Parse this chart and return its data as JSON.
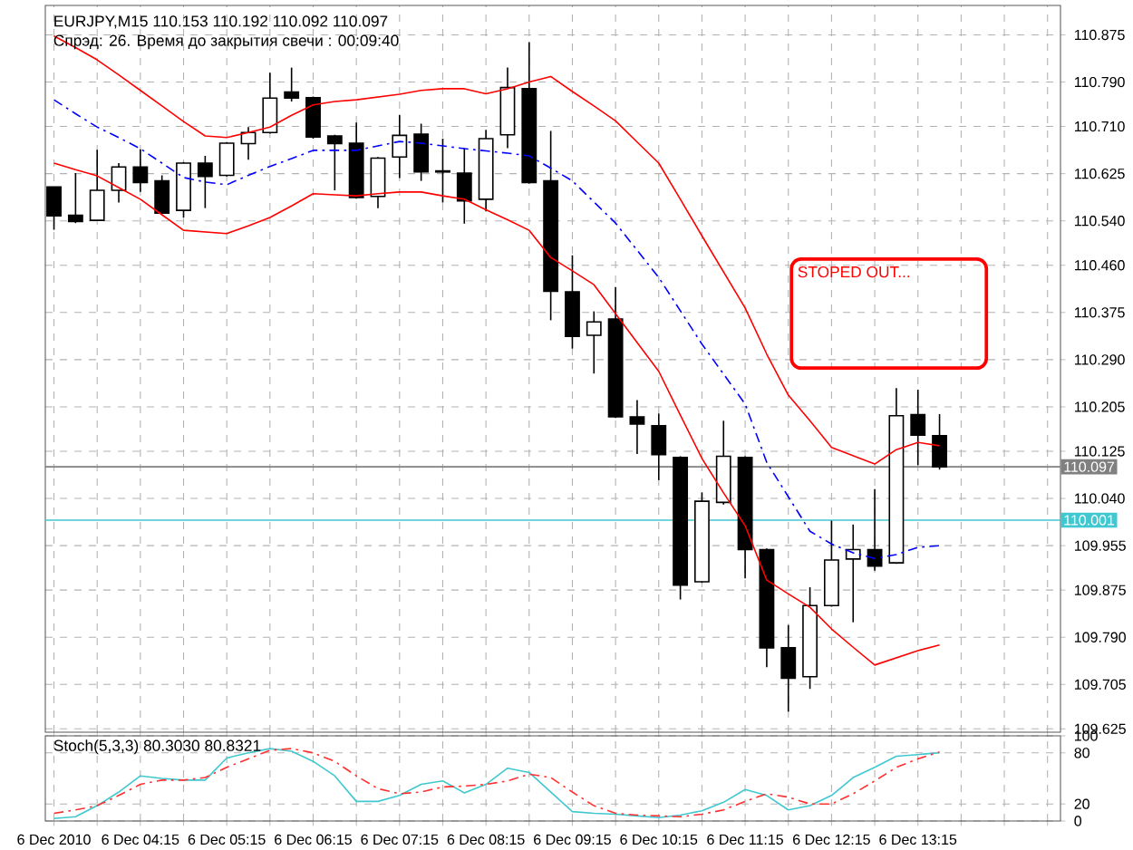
{
  "chart_data": [
    {
      "type": "candlestick",
      "title": "EURJPY,M15  110.153 110.192 110.092 110.097",
      "subtitle": "Спрэд: 26. Время до закрытия свечи : 00:09:40",
      "categories": [
        null,
        null,
        null,
        null,
        null,
        null,
        null,
        null,
        null,
        null,
        null,
        null,
        null,
        null,
        null,
        null,
        null,
        null,
        null,
        null,
        null,
        null,
        null,
        null,
        null,
        null,
        null,
        null,
        null,
        null,
        null,
        null,
        null,
        null,
        null,
        null,
        null,
        null,
        null,
        null,
        null,
        null
      ],
      "ohlc": [
        [
          110.601,
          110.601,
          110.524,
          110.549
        ],
        [
          110.55,
          110.626,
          110.536,
          110.539
        ],
        [
          110.541,
          110.668,
          110.54,
          110.595
        ],
        [
          110.595,
          110.644,
          110.573,
          110.637
        ],
        [
          110.637,
          110.669,
          110.592,
          110.609
        ],
        [
          110.612,
          110.622,
          110.552,
          110.554
        ],
        [
          110.559,
          110.646,
          110.546,
          110.644
        ],
        [
          110.644,
          110.657,
          110.563,
          110.62
        ],
        [
          110.622,
          110.682,
          110.62,
          110.68
        ],
        [
          110.679,
          110.709,
          110.65,
          110.699
        ],
        [
          110.699,
          110.807,
          110.697,
          110.761
        ],
        [
          110.772,
          110.816,
          110.755,
          110.761
        ],
        [
          110.762,
          110.764,
          110.688,
          110.691
        ],
        [
          110.693,
          110.695,
          110.595,
          110.679
        ],
        [
          110.68,
          110.717,
          110.58,
          110.582
        ],
        [
          110.584,
          110.655,
          110.563,
          110.653
        ],
        [
          110.655,
          110.731,
          110.617,
          110.694
        ],
        [
          110.696,
          110.715,
          110.612,
          110.628
        ],
        [
          110.63,
          110.688,
          110.573,
          110.628
        ],
        [
          110.626,
          110.671,
          110.535,
          110.576
        ],
        [
          110.579,
          110.704,
          110.557,
          110.688
        ],
        [
          110.695,
          110.816,
          110.671,
          110.78
        ],
        [
          110.778,
          110.862,
          110.607,
          110.609
        ],
        [
          110.612,
          110.702,
          110.361,
          110.413
        ],
        [
          110.412,
          110.478,
          110.31,
          110.332
        ],
        [
          110.334,
          110.377,
          110.265,
          110.358
        ],
        [
          110.363,
          110.421,
          110.185,
          110.187
        ],
        [
          110.187,
          110.217,
          110.12,
          110.174
        ],
        [
          110.171,
          110.193,
          110.073,
          110.119
        ],
        [
          110.114,
          110.116,
          109.858,
          109.884
        ],
        [
          109.89,
          110.051,
          109.888,
          110.035
        ],
        [
          110.033,
          110.18,
          110.029,
          110.116
        ],
        [
          110.114,
          110.116,
          109.896,
          109.948
        ],
        [
          109.948,
          109.95,
          109.736,
          109.771
        ],
        [
          109.771,
          109.812,
          109.656,
          109.716
        ],
        [
          109.719,
          109.88,
          109.697,
          109.847
        ],
        [
          109.847,
          110.0,
          109.845,
          109.929
        ],
        [
          109.931,
          109.993,
          109.817,
          109.948
        ],
        [
          109.948,
          110.057,
          109.91,
          109.918
        ],
        [
          109.924,
          110.239,
          109.922,
          110.189
        ],
        [
          110.191,
          110.236,
          110.1,
          110.154
        ],
        [
          110.153,
          110.192,
          110.092,
          110.097
        ]
      ],
      "series": [
        {
          "type": "line",
          "color": "#ff0000",
          "line_style": "solid",
          "values": [
            110.873,
            110.852,
            110.83,
            110.803,
            110.775,
            110.747,
            110.719,
            110.693,
            110.69,
            110.699,
            110.709,
            110.73,
            110.749,
            110.755,
            110.758,
            110.763,
            110.768,
            110.775,
            110.778,
            110.778,
            110.769,
            110.778,
            110.79,
            110.8,
            110.773,
            110.747,
            110.72,
            110.682,
            110.644,
            110.579,
            110.513,
            110.448,
            110.383,
            110.3,
            110.226,
            110.18,
            110.132,
            110.117,
            110.102,
            110.128,
            110.141,
            110.135
          ]
        },
        {
          "type": "line",
          "color": "#0000ff",
          "line_style": "dashed",
          "values": [
            110.758,
            110.733,
            110.709,
            110.69,
            110.67,
            110.644,
            110.618,
            110.61,
            110.605,
            110.622,
            110.638,
            110.652,
            110.667,
            110.667,
            110.667,
            110.675,
            110.683,
            110.68,
            110.675,
            110.67,
            110.666,
            110.662,
            110.657,
            110.635,
            110.612,
            110.574,
            110.536,
            110.487,
            110.438,
            110.378,
            110.318,
            110.264,
            110.21,
            110.105,
            110.043,
            109.981,
            109.958,
            109.942,
            109.932,
            109.939,
            109.952,
            109.955
          ]
        },
        {
          "type": "line",
          "color": "#ff0000",
          "line_style": "solid",
          "values": [
            110.644,
            110.632,
            110.621,
            110.6,
            110.579,
            110.551,
            110.523,
            110.52,
            110.517,
            110.531,
            110.546,
            110.567,
            110.589,
            110.587,
            110.585,
            110.589,
            110.592,
            110.592,
            110.585,
            110.579,
            110.56,
            110.542,
            110.523,
            110.474,
            110.45,
            110.425,
            110.373,
            110.321,
            110.269,
            110.19,
            110.112,
            110.05,
            109.991,
            109.893,
            109.868,
            109.844,
            109.805,
            109.772,
            109.74,
            109.753,
            109.766,
            109.776
          ]
        }
      ],
      "ref_lines": [
        {
          "axis": "y",
          "value": 110.097,
          "label": "110.097",
          "color": "#808080"
        },
        {
          "axis": "y",
          "value": 110.001,
          "label": "110.001",
          "color": "#40c8d0"
        }
      ],
      "annotations": [
        "STOPED OUT..."
      ],
      "ylim": [
        109.619,
        110.928
      ],
      "yticks": [
        109.625,
        109.705,
        {
          "value": 109.79,
          "label": "109.790"
        },
        109.875,
        109.955,
        {
          "value": 110.04,
          "label": "110.040"
        },
        110.125,
        110.205,
        {
          "value": 110.29,
          "label": "110.290"
        },
        110.375,
        {
          "value": 110.46,
          "label": "110.460"
        },
        {
          "value": 110.54,
          "label": "110.540"
        },
        110.625,
        {
          "value": 110.71,
          "label": "110.710"
        },
        {
          "value": 110.79,
          "label": "110.790"
        },
        110.875
      ],
      "tick_labels": "y",
      "grid": true
    },
    {
      "type": "line",
      "title": "Stoch(5,3,3) 80.3030 80.8321",
      "categories": [
        "6 Dec 2010",
        null,
        null,
        null,
        "6 Dec 04:15",
        null,
        null,
        null,
        "6 Dec 05:15",
        null,
        null,
        null,
        "6 Dec 06:15",
        null,
        null,
        null,
        "6 Dec 07:15",
        null,
        null,
        null,
        "6 Dec 08:15",
        null,
        null,
        null,
        "6 Dec 09:15",
        null,
        null,
        null,
        "6 Dec 10:15",
        null,
        null,
        null,
        "6 Dec 11:15",
        null,
        null,
        null,
        "6 Dec 12:15",
        null,
        null,
        null,
        "6 Dec 13:15",
        null
      ],
      "series": [
        {
          "color": "#40c8d0",
          "line_style": "solid",
          "values": [
            3,
            5,
            18,
            34,
            53,
            50,
            48,
            48,
            74,
            80,
            85,
            82,
            70,
            53,
            23,
            23,
            30,
            43,
            47,
            33,
            43,
            62,
            57,
            34,
            11,
            9,
            8,
            6,
            4,
            7,
            12,
            22,
            37,
            30,
            13,
            18,
            30,
            51,
            63,
            76,
            78,
            80
          ]
        },
        {
          "color": "#ff3030",
          "line_style": "dashed",
          "values": [
            9,
            13,
            18,
            30,
            43,
            48,
            48,
            51,
            63,
            73,
            83,
            85,
            80,
            70,
            53,
            38,
            32,
            34,
            40,
            41,
            43,
            47,
            55,
            51,
            34,
            18,
            9,
            7,
            6,
            5,
            8,
            13,
            23,
            32,
            28,
            20,
            20,
            32,
            47,
            63,
            73,
            81
          ]
        }
      ],
      "ylim": [
        0,
        100
      ],
      "yticks": [
        0,
        20,
        80,
        100
      ],
      "grid": true
    }
  ]
}
